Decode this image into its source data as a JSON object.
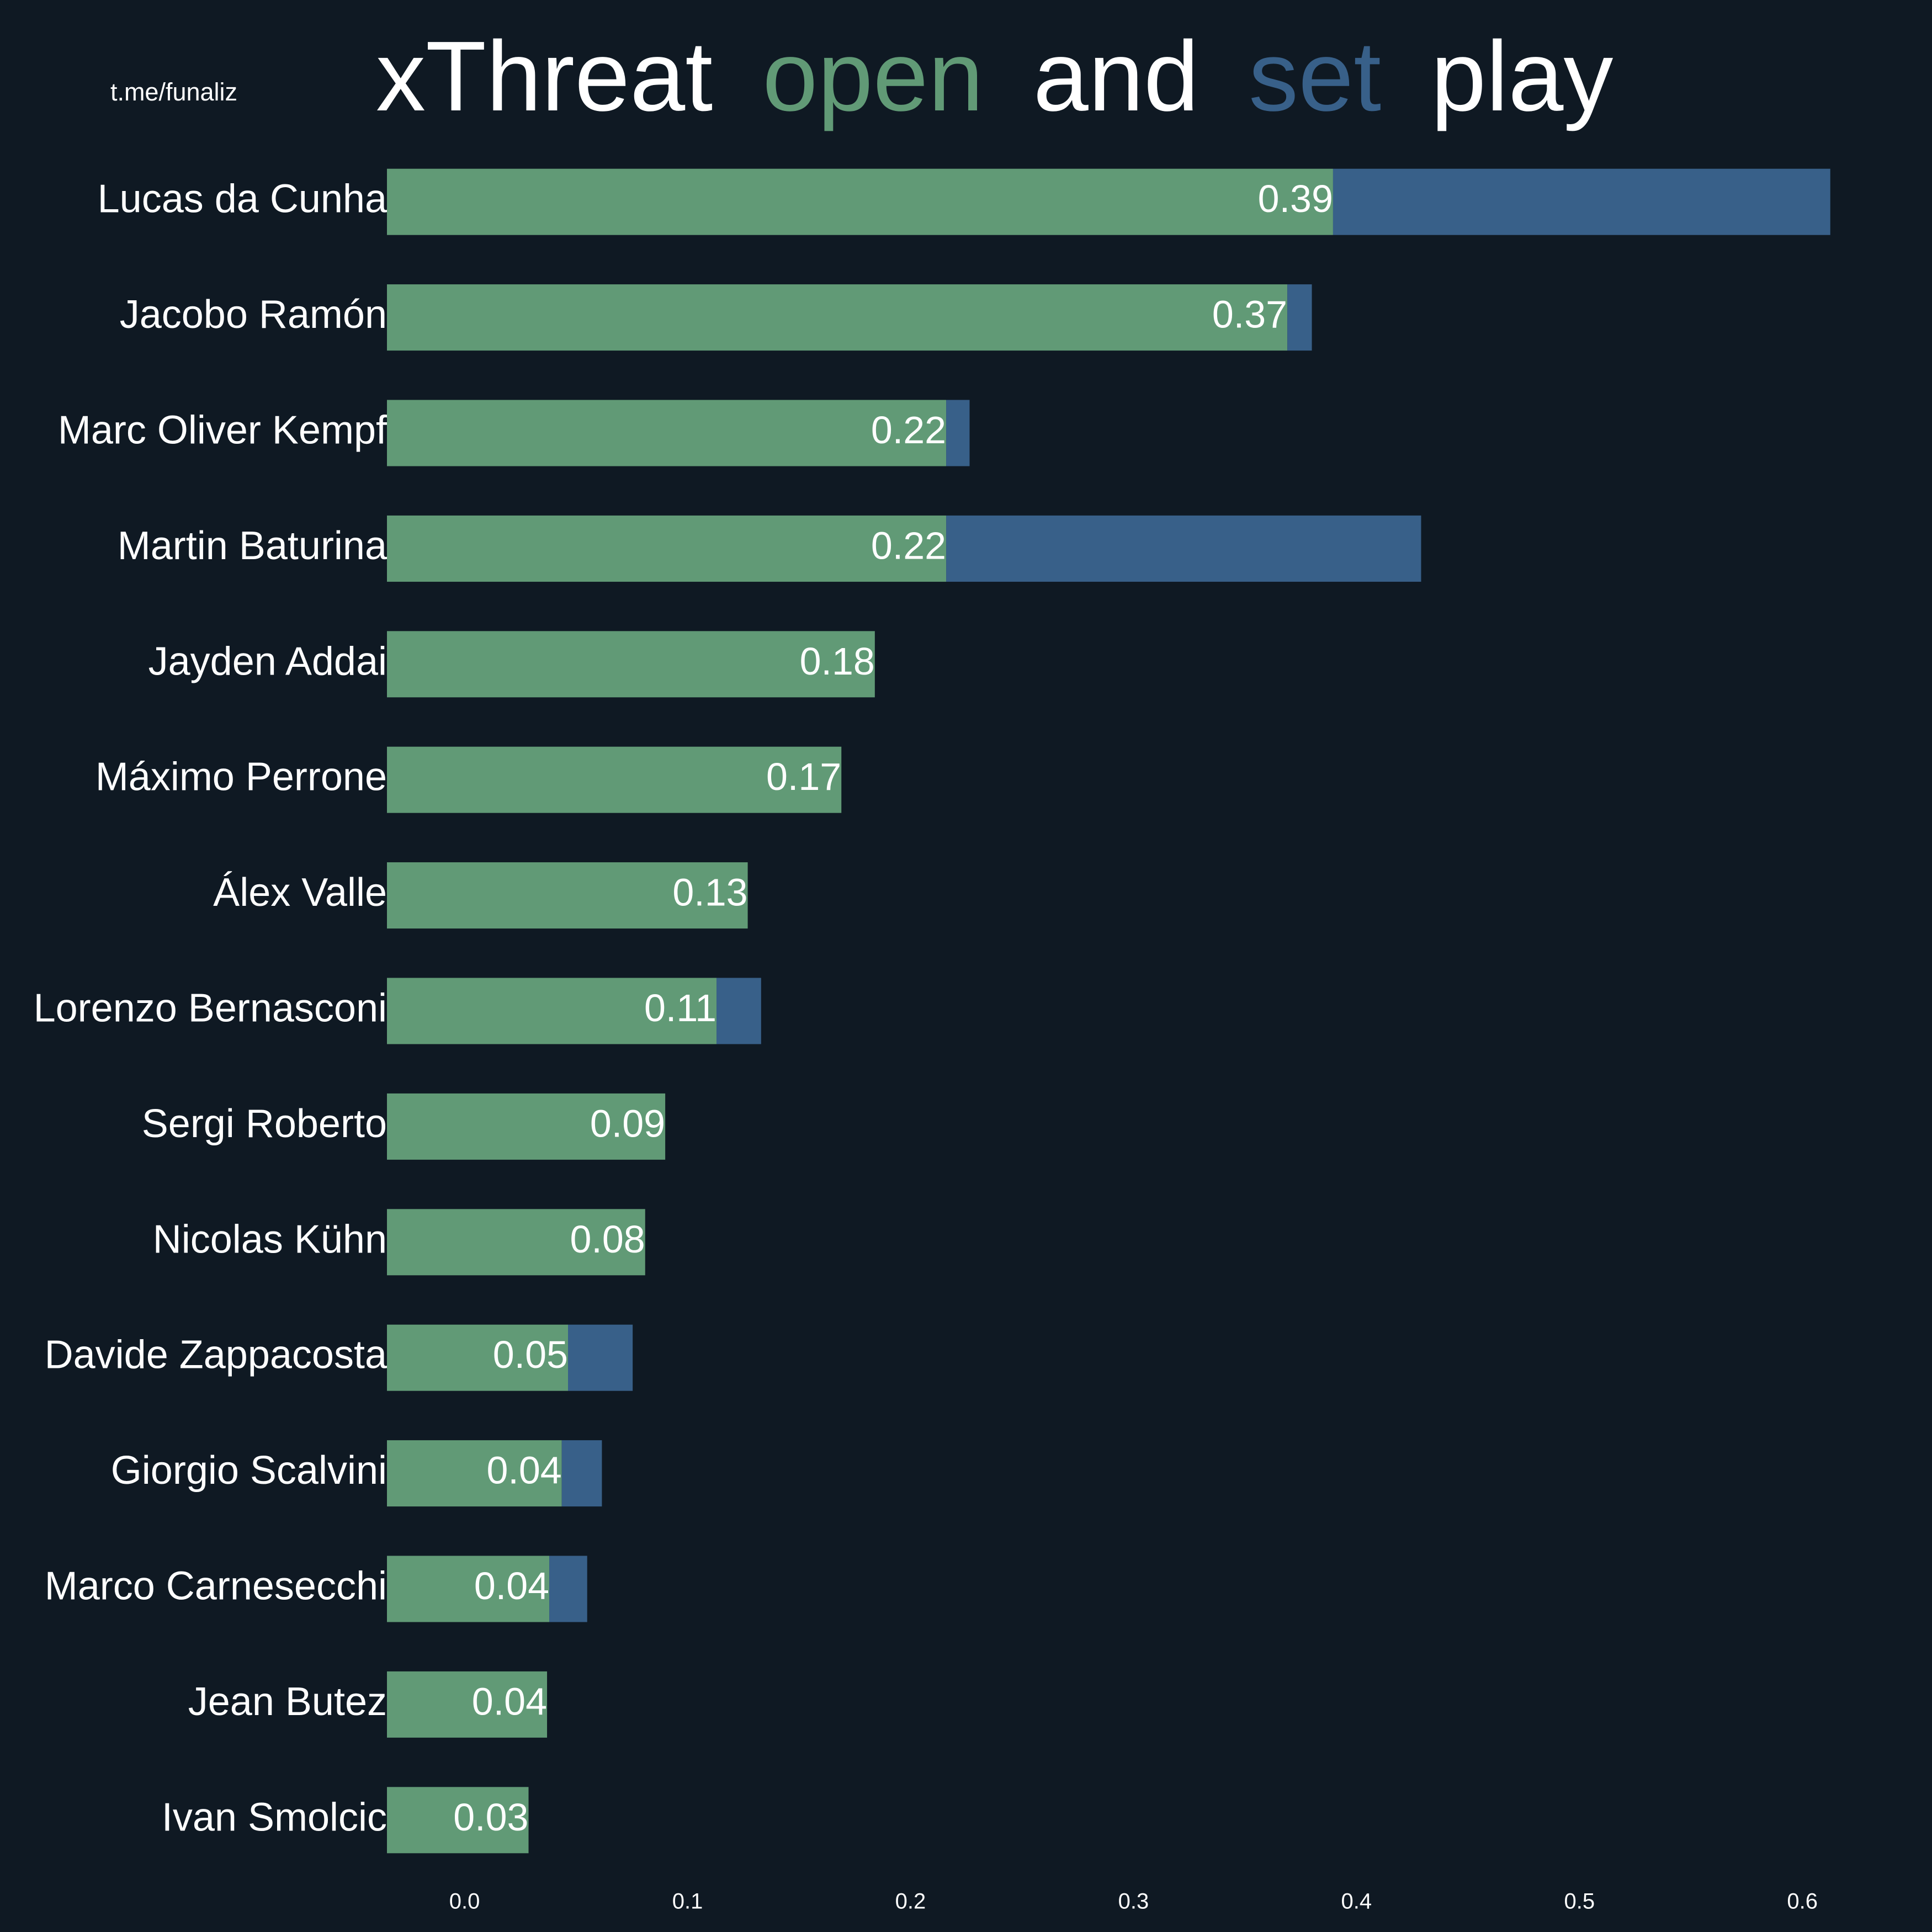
{
  "chart_data": {
    "type": "barh_stacked",
    "watermark": "t.me/funaliz",
    "title_parts": [
      "xThreat",
      "and",
      "play"
    ],
    "categories": [
      "Lucas da Cunha",
      "Jacobo Ramón",
      "Marc Oliver Kempf",
      "Martin Baturina",
      "Jayden Addai",
      "Máximo Perrone",
      "Álex Valle",
      "Lorenzo Bernasconi",
      "Sergi Roberto",
      "Nicolas Kühn",
      "Davide Zappacosta",
      "Giorgio Scalvini",
      "Marco Carnesecchi",
      "Jean Butez",
      "Ivan Smolcic"
    ],
    "series": [
      {
        "name": "open",
        "color": "#619a76",
        "values": [
          0.3895,
          0.369,
          0.216,
          0.216,
          0.184,
          0.169,
          0.127,
          0.113,
          0.09,
          0.081,
          0.0464,
          0.0436,
          0.038,
          0.037,
          0.0287
        ],
        "value_labels": [
          "0.39",
          "0.37",
          "0.22",
          "0.22",
          "0.18",
          "0.17",
          "0.13",
          "0.11",
          "0.09",
          "0.08",
          "0.05",
          "0.04",
          "0.04",
          "0.04",
          "0.03"
        ]
      },
      {
        "name": "set",
        "color": "#386089",
        "values": [
          0.223,
          0.011,
          0.0105,
          0.213,
          0,
          0,
          0,
          0.02,
          0,
          0,
          0.029,
          0.018,
          0.017,
          0,
          0
        ]
      }
    ],
    "xlim": [
      -0.0348,
      0.645
    ],
    "xticks": [
      {
        "value": 0,
        "label": "0.0"
      },
      0.1,
      0.2,
      0.3,
      0.4,
      0.5,
      0.6
    ],
    "background": "#0f1923"
  }
}
